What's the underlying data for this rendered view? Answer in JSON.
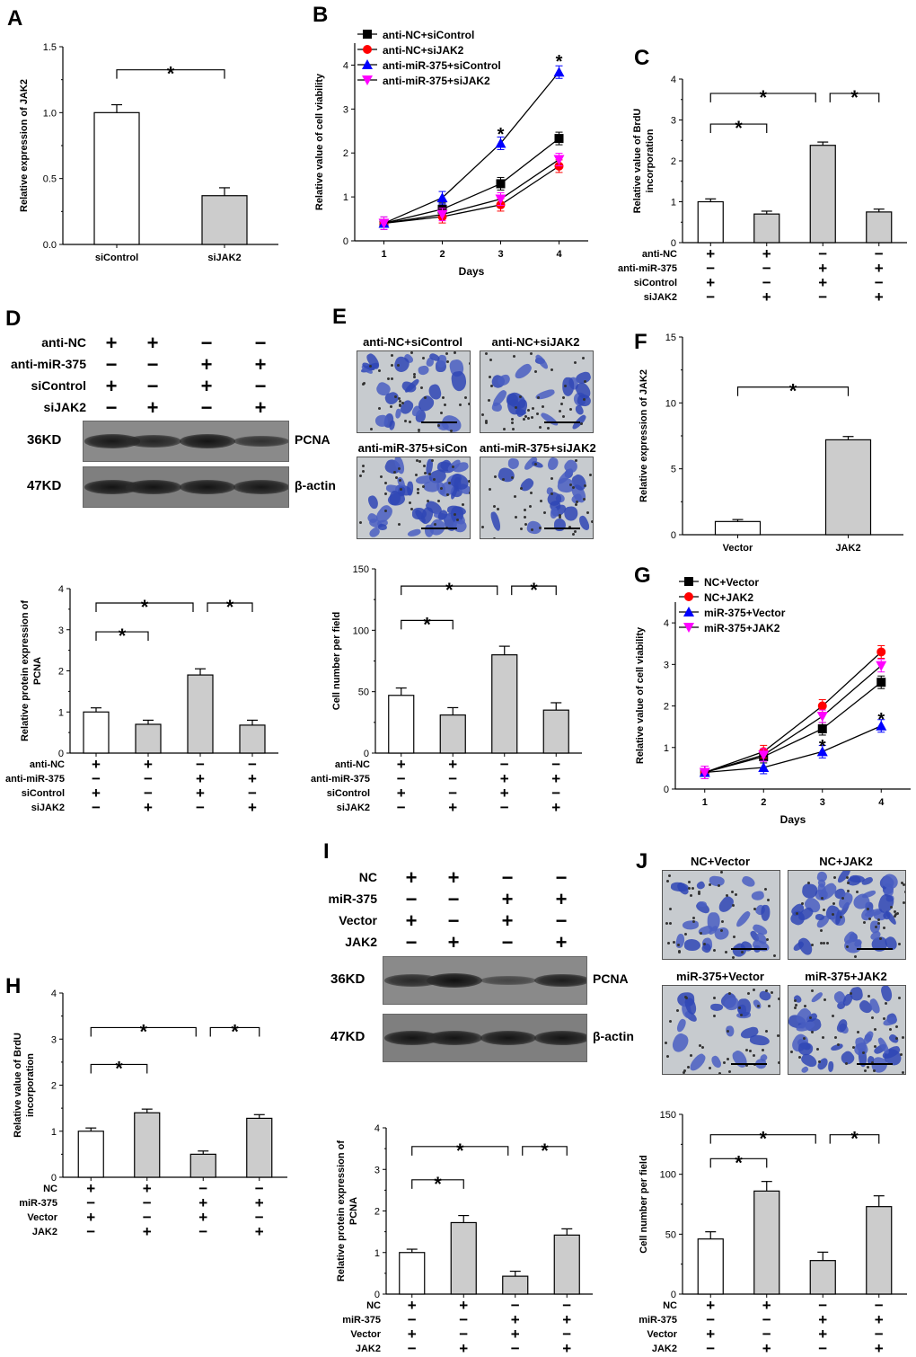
{
  "panels": {
    "A": {
      "letter": "A",
      "chart_data": {
        "type": "bar",
        "categories": [
          "siControl",
          "siJAK2"
        ],
        "values": [
          1.0,
          0.37
        ],
        "errors": [
          0.06,
          0.06
        ],
        "ylabel": "Relative expression of JAK2",
        "ylim": [
          0,
          1.5
        ],
        "yticks": [
          "0.0",
          "0.5",
          "1.0",
          "1.5"
        ],
        "significance": [
          {
            "from": 0,
            "to": 1,
            "label": "*"
          }
        ],
        "fills": [
          "#ffffff",
          "#cccccc"
        ]
      }
    },
    "B": {
      "letter": "B",
      "chart_data": {
        "type": "line",
        "x": [
          1,
          2,
          3,
          4
        ],
        "xlabel": "Days",
        "ylabel": "Relative value of cell viability",
        "ylim": [
          0,
          4.5
        ],
        "yticks": [
          "0",
          "1",
          "2",
          "3",
          "4"
        ],
        "xticks": [
          "1",
          "2",
          "3",
          "4"
        ],
        "legend_position": "top-left",
        "series": [
          {
            "name": "anti-NC+siControl",
            "values": [
              0.4,
              0.72,
              1.3,
              2.33
            ],
            "color": "#000000",
            "marker": "square"
          },
          {
            "name": "anti-NC+siJAK2",
            "values": [
              0.4,
              0.55,
              0.82,
              1.7
            ],
            "color": "#ff0000",
            "marker": "circle"
          },
          {
            "name": "anti-miR-375+siControl",
            "values": [
              0.4,
              0.98,
              2.22,
              3.84
            ],
            "color": "#0000ff",
            "marker": "triangle-up"
          },
          {
            "name": "anti-miR-375+siJAK2",
            "values": [
              0.4,
              0.6,
              0.95,
              1.85
            ],
            "color": "#ff00ff",
            "marker": "triangle-down"
          }
        ],
        "annotations": [
          {
            "x": 3,
            "y": 2.5,
            "label": "*"
          },
          {
            "x": 4,
            "y": 4.15,
            "label": "*"
          }
        ]
      }
    },
    "C": {
      "letter": "C",
      "chart_data": {
        "type": "bar",
        "categories": [
          "1",
          "2",
          "3",
          "4"
        ],
        "values": [
          1.0,
          0.7,
          2.38,
          0.75
        ],
        "errors": [
          0.07,
          0.07,
          0.08,
          0.07
        ],
        "ylabel": "Relative value of BrdU incorporation",
        "ylim": [
          0,
          4
        ],
        "yticks": [
          "0",
          "1",
          "2",
          "3",
          "4"
        ],
        "fills": [
          "#ffffff",
          "#cccccc",
          "#cccccc",
          "#cccccc"
        ],
        "conditions": [
          {
            "label": "anti-NC",
            "signs": [
              "+",
              "+",
              "−",
              "−"
            ]
          },
          {
            "label": "anti-miR-375",
            "signs": [
              "−",
              "−",
              "+",
              "+"
            ]
          },
          {
            "label": "siControl",
            "signs": [
              "+",
              "−",
              "+",
              "−"
            ]
          },
          {
            "label": "siJAK2",
            "signs": [
              "−",
              "+",
              "−",
              "+"
            ]
          }
        ],
        "significance": [
          {
            "from": 0,
            "to": 1,
            "level": 2.9,
            "label": "*"
          },
          {
            "from": 0,
            "to": 2,
            "level": 3.65,
            "label": "*"
          },
          {
            "from": 2,
            "to": 3,
            "level": 3.65,
            "label": "*"
          }
        ]
      }
    },
    "D_blot": {
      "letter": "D",
      "conditions": [
        {
          "label": "anti-NC",
          "signs": [
            "+",
            "+",
            "−",
            "−"
          ]
        },
        {
          "label": "anti-miR-375",
          "signs": [
            "−",
            "−",
            "+",
            "+"
          ]
        },
        {
          "label": "siControl",
          "signs": [
            "+",
            "−",
            "+",
            "−"
          ]
        },
        {
          "label": "siJAK2",
          "signs": [
            "−",
            "+",
            "−",
            "+"
          ]
        }
      ],
      "rows": [
        {
          "kd": "36KD",
          "protein": "PCNA",
          "intensity": [
            0.9,
            0.75,
            0.95,
            0.6
          ]
        },
        {
          "kd": "47KD",
          "protein": "β-actin",
          "intensity": [
            0.95,
            0.95,
            0.95,
            0.9
          ]
        }
      ]
    },
    "D_chart": {
      "chart_data": {
        "type": "bar",
        "categories": [
          "1",
          "2",
          "3",
          "4"
        ],
        "values": [
          1.0,
          0.7,
          1.9,
          0.68
        ],
        "errors": [
          0.1,
          0.1,
          0.15,
          0.12
        ],
        "ylabel": "Relative  protein expression of PCNA",
        "ylim": [
          0,
          4
        ],
        "yticks": [
          "0",
          "1",
          "2",
          "3",
          "4"
        ],
        "fills": [
          "#ffffff",
          "#cccccc",
          "#cccccc",
          "#cccccc"
        ],
        "conditions": [
          {
            "label": "anti-NC",
            "signs": [
              "+",
              "+",
              "−",
              "−"
            ]
          },
          {
            "label": "anti-miR-375",
            "signs": [
              "−",
              "−",
              "+",
              "+"
            ]
          },
          {
            "label": "siControl",
            "signs": [
              "+",
              "−",
              "+",
              "−"
            ]
          },
          {
            "label": "siJAK2",
            "signs": [
              "−",
              "+",
              "−",
              "+"
            ]
          }
        ],
        "significance": [
          {
            "from": 0,
            "to": 1,
            "level": 2.95,
            "label": "*"
          },
          {
            "from": 0,
            "to": 2,
            "level": 3.65,
            "label": "*"
          },
          {
            "from": 2,
            "to": 3,
            "level": 3.65,
            "label": "*"
          }
        ]
      }
    },
    "E_images": {
      "letter": "E",
      "titles": [
        "anti-NC+siControl",
        "anti-NC+siJAK2",
        "anti-miR-375+siCon",
        "anti-miR-375+siJAK2"
      ],
      "density": [
        0.45,
        0.3,
        0.85,
        0.35
      ]
    },
    "E_chart": {
      "chart_data": {
        "type": "bar",
        "categories": [
          "1",
          "2",
          "3",
          "4"
        ],
        "values": [
          47,
          31,
          80,
          35
        ],
        "errors": [
          6,
          6,
          7,
          6
        ],
        "ylabel": "Cell number per field",
        "ylim": [
          0,
          150
        ],
        "yticks": [
          "0",
          "50",
          "100",
          "150"
        ],
        "fills": [
          "#ffffff",
          "#cccccc",
          "#cccccc",
          "#cccccc"
        ],
        "conditions": [
          {
            "label": "anti-NC",
            "signs": [
              "+",
              "+",
              "−",
              "−"
            ]
          },
          {
            "label": "anti-miR-375",
            "signs": [
              "−",
              "−",
              "+",
              "+"
            ]
          },
          {
            "label": "siControl",
            "signs": [
              "+",
              "−",
              "+",
              "−"
            ]
          },
          {
            "label": "siJAK2",
            "signs": [
              "−",
              "+",
              "−",
              "+"
            ]
          }
        ],
        "significance": [
          {
            "from": 0,
            "to": 1,
            "level": 108,
            "label": "*"
          },
          {
            "from": 0,
            "to": 2,
            "level": 136,
            "label": "*"
          },
          {
            "from": 2,
            "to": 3,
            "level": 136,
            "label": "*"
          }
        ]
      }
    },
    "F": {
      "letter": "F",
      "chart_data": {
        "type": "bar",
        "categories": [
          "Vector",
          "JAK2"
        ],
        "values": [
          1.0,
          7.2
        ],
        "errors": [
          0.15,
          0.25
        ],
        "ylabel": "Relative expression of JAK2",
        "ylim": [
          0,
          15
        ],
        "yticks": [
          "0",
          "5",
          "10",
          "15"
        ],
        "fills": [
          "#ffffff",
          "#cccccc"
        ],
        "significance": [
          {
            "from": 0,
            "to": 1,
            "level": 11.2,
            "label": "*"
          }
        ]
      }
    },
    "G": {
      "letter": "G",
      "chart_data": {
        "type": "line",
        "x": [
          1,
          2,
          3,
          4
        ],
        "xlabel": "Days",
        "ylabel": "Relative value of cell viability",
        "ylim": [
          0,
          4.5
        ],
        "yticks": [
          "0",
          "1",
          "2",
          "3",
          "4"
        ],
        "xticks": [
          "1",
          "2",
          "3",
          "4"
        ],
        "legend_position": "top-left",
        "series": [
          {
            "name": "NC+Vector",
            "values": [
              0.4,
              0.78,
              1.45,
              2.57
            ],
            "color": "#000000",
            "marker": "square"
          },
          {
            "name": "NC+JAK2",
            "values": [
              0.4,
              0.9,
              2.0,
              3.3
            ],
            "color": "#ff0000",
            "marker": "circle"
          },
          {
            "name": "miR-375+Vector",
            "values": [
              0.4,
              0.52,
              0.9,
              1.52
            ],
            "color": "#0000ff",
            "marker": "triangle-up"
          },
          {
            "name": "miR-375+JAK2",
            "values": [
              0.4,
              0.82,
              1.75,
              2.97
            ],
            "color": "#ff00ff",
            "marker": "triangle-down"
          }
        ],
        "annotations": [
          {
            "x": 3,
            "y": 1.1,
            "label": "*"
          },
          {
            "x": 4,
            "y": 1.75,
            "label": "*"
          }
        ]
      }
    },
    "H": {
      "letter": "H",
      "chart_data": {
        "type": "bar",
        "categories": [
          "1",
          "2",
          "3",
          "4"
        ],
        "values": [
          1.0,
          1.4,
          0.5,
          1.28
        ],
        "errors": [
          0.07,
          0.08,
          0.07,
          0.08
        ],
        "ylabel": "Relative value of BrdU incorporation",
        "ylim": [
          0,
          4
        ],
        "yticks": [
          "0",
          "1",
          "2",
          "3",
          "4"
        ],
        "fills": [
          "#ffffff",
          "#cccccc",
          "#cccccc",
          "#cccccc"
        ],
        "conditions": [
          {
            "label": "NC",
            "signs": [
              "+",
              "+",
              "−",
              "−"
            ]
          },
          {
            "label": "miR-375",
            "signs": [
              "−",
              "−",
              "+",
              "+"
            ]
          },
          {
            "label": "Vector",
            "signs": [
              "+",
              "−",
              "+",
              "−"
            ]
          },
          {
            "label": "JAK2",
            "signs": [
              "−",
              "+",
              "−",
              "+"
            ]
          }
        ],
        "significance": [
          {
            "from": 0,
            "to": 1,
            "level": 2.45,
            "label": "*"
          },
          {
            "from": 0,
            "to": 2,
            "level": 3.25,
            "label": "*"
          },
          {
            "from": 2,
            "to": 3,
            "level": 3.25,
            "label": "*"
          }
        ]
      }
    },
    "I_blot": {
      "letter": "I",
      "conditions": [
        {
          "label": "NC",
          "signs": [
            "+",
            "+",
            "−",
            "−"
          ]
        },
        {
          "label": "miR-375",
          "signs": [
            "−",
            "−",
            "+",
            "+"
          ]
        },
        {
          "label": "Vector",
          "signs": [
            "+",
            "−",
            "+",
            "−"
          ]
        },
        {
          "label": "JAK2",
          "signs": [
            "−",
            "+",
            "−",
            "+"
          ]
        }
      ],
      "rows": [
        {
          "kd": "36KD",
          "protein": "PCNA",
          "intensity": [
            0.7,
            1.0,
            0.35,
            0.85
          ]
        },
        {
          "kd": "47KD",
          "protein": "β-actin",
          "intensity": [
            0.95,
            0.95,
            0.95,
            0.95
          ]
        }
      ]
    },
    "I_chart": {
      "chart_data": {
        "type": "bar",
        "categories": [
          "1",
          "2",
          "3",
          "4"
        ],
        "values": [
          1.0,
          1.72,
          0.43,
          1.42
        ],
        "errors": [
          0.08,
          0.17,
          0.12,
          0.15
        ],
        "ylabel": "Relative  protein expression of PCNA",
        "ylim": [
          0,
          4
        ],
        "yticks": [
          "0",
          "1",
          "2",
          "3",
          "4"
        ],
        "fills": [
          "#ffffff",
          "#cccccc",
          "#cccccc",
          "#cccccc"
        ],
        "conditions": [
          {
            "label": "NC",
            "signs": [
              "+",
              "+",
              "−",
              "−"
            ]
          },
          {
            "label": "miR-375",
            "signs": [
              "−",
              "−",
              "+",
              "+"
            ]
          },
          {
            "label": "Vector",
            "signs": [
              "+",
              "−",
              "+",
              "−"
            ]
          },
          {
            "label": "JAK2",
            "signs": [
              "−",
              "+",
              "−",
              "+"
            ]
          }
        ],
        "significance": [
          {
            "from": 0,
            "to": 1,
            "level": 2.75,
            "label": "*"
          },
          {
            "from": 0,
            "to": 2,
            "level": 3.55,
            "label": "*"
          },
          {
            "from": 2,
            "to": 3,
            "level": 3.55,
            "label": "*"
          }
        ]
      }
    },
    "J_images": {
      "letter": "J",
      "titles": [
        "NC+Vector",
        "NC+JAK2",
        "miR-375+Vector",
        "miR-375+JAK2"
      ],
      "density": [
        0.45,
        0.85,
        0.3,
        0.7
      ]
    },
    "J_chart": {
      "chart_data": {
        "type": "bar",
        "categories": [
          "1",
          "2",
          "3",
          "4"
        ],
        "values": [
          46,
          86,
          28,
          73
        ],
        "errors": [
          6,
          8,
          7,
          9
        ],
        "ylabel": "Cell number per field",
        "ylim": [
          0,
          150
        ],
        "yticks": [
          "0",
          "50",
          "100",
          "150"
        ],
        "fills": [
          "#ffffff",
          "#cccccc",
          "#cccccc",
          "#cccccc"
        ],
        "conditions": [
          {
            "label": "NC",
            "signs": [
              "+",
              "+",
              "−",
              "−"
            ]
          },
          {
            "label": "miR-375",
            "signs": [
              "−",
              "−",
              "+",
              "+"
            ]
          },
          {
            "label": "Vector",
            "signs": [
              "+",
              "−",
              "+",
              "−"
            ]
          },
          {
            "label": "JAK2",
            "signs": [
              "−",
              "+",
              "−",
              "+"
            ]
          }
        ],
        "significance": [
          {
            "from": 0,
            "to": 1,
            "level": 113,
            "label": "*"
          },
          {
            "from": 0,
            "to": 2,
            "level": 133,
            "label": "*"
          },
          {
            "from": 2,
            "to": 3,
            "level": 133,
            "label": "*"
          }
        ]
      }
    }
  }
}
